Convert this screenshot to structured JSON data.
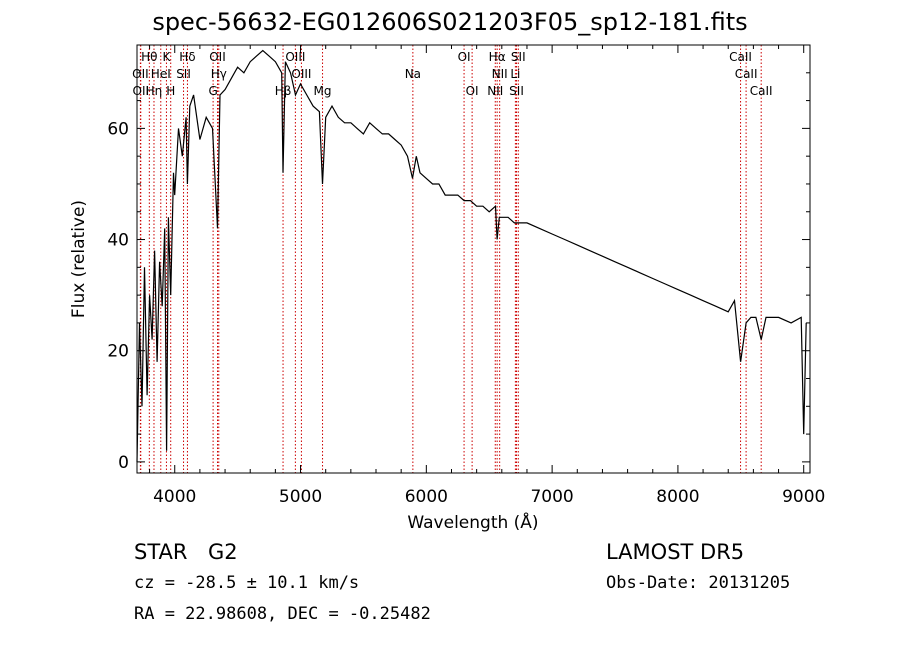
{
  "title": "spec-56632-EG012606S021203F05_sp12-181.fits",
  "info": {
    "object_class": "STAR",
    "subclass": "G2",
    "survey": "LAMOST  DR5",
    "cz": "cz = -28.5 ± 10.1 km/s",
    "obs_date": "Obs-Date: 20131205",
    "radec": "RA =  22.98608, DEC =  -0.25482"
  },
  "colors": {
    "spectrum": "#000000",
    "lines": "#cc0000",
    "axes": "#000000"
  },
  "chart_data": {
    "type": "line",
    "title": "spec-56632-EG012606S021203F05_sp12-181.fits",
    "xlabel": "Wavelength (Å)",
    "ylabel": "Flux (relative)",
    "xlim": [
      3700,
      9050
    ],
    "ylim": [
      -2,
      75
    ],
    "x_ticks": [
      4000,
      5000,
      6000,
      7000,
      8000,
      9000
    ],
    "y_ticks": [
      0,
      20,
      40,
      60
    ],
    "grid": false,
    "series": [
      {
        "x": [
          3700,
          3720,
          3740,
          3760,
          3780,
          3800,
          3820,
          3840,
          3860,
          3880,
          3900,
          3920,
          3935,
          3950,
          3968,
          3990,
          4000,
          4030,
          4060,
          4090,
          4101,
          4120,
          4150,
          4200,
          4250,
          4300,
          4340,
          4360,
          4400,
          4450,
          4500,
          4550,
          4600,
          4650,
          4700,
          4750,
          4800,
          4850,
          4861,
          4880,
          4920,
          4960,
          5000,
          5050,
          5100,
          5150,
          5175,
          5200,
          5250,
          5300,
          5350,
          5400,
          5450,
          5500,
          5550,
          5600,
          5650,
          5700,
          5750,
          5800,
          5850,
          5890,
          5920,
          5950,
          6000,
          6050,
          6100,
          6150,
          6200,
          6250,
          6300,
          6350,
          6400,
          6450,
          6500,
          6550,
          6563,
          6580,
          6650,
          6700,
          6750,
          6800,
          6900,
          7000,
          7100,
          7200,
          7300,
          7400,
          7500,
          7600,
          7700,
          7800,
          7900,
          8000,
          8100,
          8200,
          8300,
          8400,
          8450,
          8498,
          8542,
          8580,
          8620,
          8662,
          8700,
          8800,
          8900,
          8980,
          9000,
          9020
        ],
        "y": [
          0,
          25,
          10,
          35,
          12,
          30,
          22,
          38,
          18,
          36,
          28,
          42,
          2,
          44,
          30,
          52,
          48,
          60,
          55,
          62,
          50,
          64,
          66,
          58,
          62,
          60,
          42,
          66,
          67,
          69,
          71,
          70,
          72,
          73,
          74,
          73,
          72,
          70,
          52,
          72,
          70,
          66,
          68,
          66,
          64,
          63,
          50,
          62,
          64,
          62,
          61,
          61,
          60,
          59,
          61,
          60,
          59,
          59,
          58,
          57,
          55,
          51,
          55,
          52,
          51,
          50,
          50,
          48,
          48,
          48,
          47,
          47,
          46,
          46,
          45,
          46,
          40,
          44,
          44,
          43,
          43,
          43,
          42,
          41,
          40,
          39,
          38,
          37,
          36,
          35,
          34,
          33,
          32,
          31,
          30,
          29,
          28,
          27,
          29,
          18,
          25,
          26,
          26,
          22,
          26,
          26,
          25,
          26,
          5,
          25
        ]
      }
    ],
    "line_labels": [
      {
        "label": "Hθ",
        "x": 3798,
        "row": 1
      },
      {
        "label": "K",
        "x": 3934,
        "row": 1
      },
      {
        "label": "Hδ",
        "x": 4101,
        "row": 1
      },
      {
        "label": "OII",
        "x": 4340,
        "row": 1
      },
      {
        "label": "OIII",
        "x": 4959,
        "row": 1
      },
      {
        "label": "OI",
        "x": 6300,
        "row": 1
      },
      {
        "label": "Hα",
        "x": 6563,
        "row": 1
      },
      {
        "label": "SII",
        "x": 6731,
        "row": 1
      },
      {
        "label": "CaII",
        "x": 8498,
        "row": 1
      },
      {
        "label": "OII",
        "x": 3727,
        "row": 2
      },
      {
        "label": "HeI",
        "x": 3889,
        "row": 2
      },
      {
        "label": "SII",
        "x": 4070,
        "row": 2
      },
      {
        "label": "Hγ",
        "x": 4350,
        "row": 2
      },
      {
        "label": "OIII",
        "x": 5007,
        "row": 2
      },
      {
        "label": "Na",
        "x": 5893,
        "row": 2
      },
      {
        "label": "NII",
        "x": 6583,
        "row": 2
      },
      {
        "label": "Li",
        "x": 6708,
        "row": 2
      },
      {
        "label": "CaII",
        "x": 8542,
        "row": 2
      },
      {
        "label": "OII",
        "x": 3730,
        "row": 3
      },
      {
        "label": "Hη",
        "x": 3835,
        "row": 3
      },
      {
        "label": "H",
        "x": 3968,
        "row": 3
      },
      {
        "label": "G",
        "x": 4305,
        "row": 3
      },
      {
        "label": "Hβ",
        "x": 4861,
        "row": 3
      },
      {
        "label": "Mg",
        "x": 5175,
        "row": 3
      },
      {
        "label": "OI",
        "x": 6364,
        "row": 3
      },
      {
        "label": "NII",
        "x": 6548,
        "row": 3
      },
      {
        "label": "SII",
        "x": 6717,
        "row": 3
      },
      {
        "label": "CaII",
        "x": 8662,
        "row": 3
      }
    ]
  }
}
